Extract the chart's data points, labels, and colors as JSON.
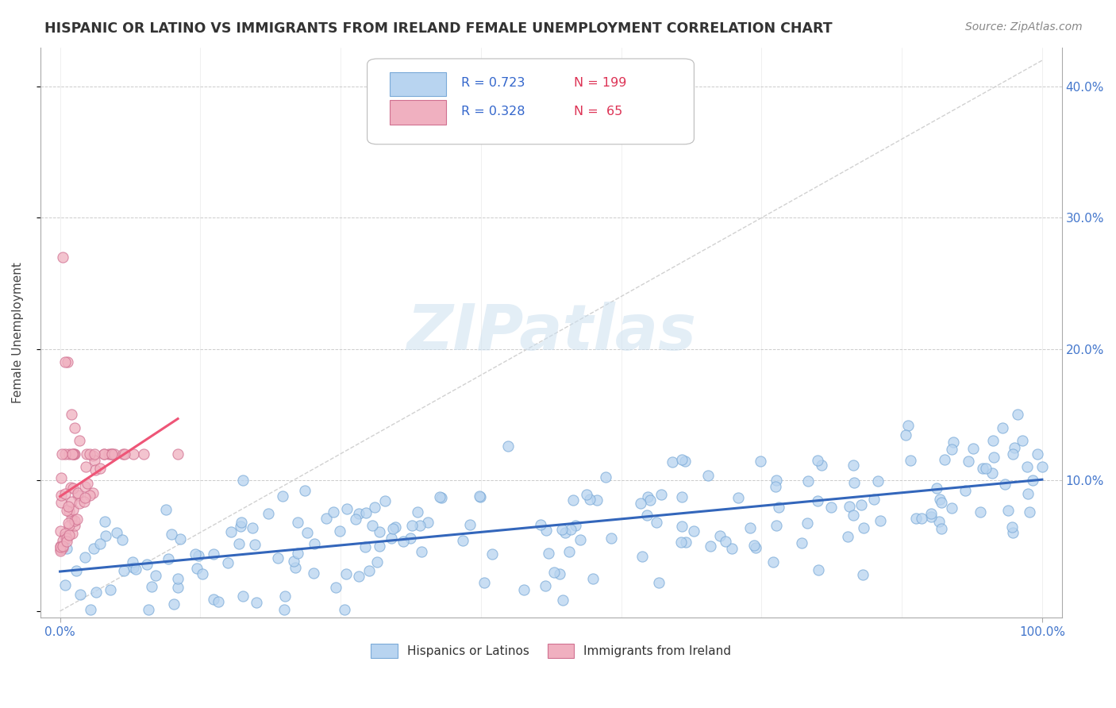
{
  "title": "HISPANIC OR LATINO VS IMMIGRANTS FROM IRELAND FEMALE UNEMPLOYMENT CORRELATION CHART",
  "source": "Source: ZipAtlas.com",
  "ylabel": "Female Unemployment",
  "watermark": "ZIPatlas",
  "blue_color": "#b8d4f0",
  "blue_edge": "#7aaad8",
  "pink_color": "#f0b0c0",
  "pink_edge": "#d07090",
  "blue_line_color": "#3366bb",
  "pink_line_color": "#ee5577",
  "blue_R": 0.723,
  "blue_N": 199,
  "pink_R": 0.328,
  "pink_N": 65,
  "seed": 42,
  "xlim": [
    -2,
    102
  ],
  "ylim": [
    -0.005,
    0.43
  ],
  "yticks": [
    0.0,
    0.1,
    0.2,
    0.3,
    0.4
  ],
  "ytick_labels": [
    "",
    "10.0%",
    "20.0%",
    "30.0%",
    "40.0%"
  ],
  "xtick_labels": [
    "0.0%",
    "100.0%"
  ],
  "legend_R1": "R = 0.723",
  "legend_N1": "N = 199",
  "legend_R2": "R = 0.328",
  "legend_N2": "N =  65"
}
